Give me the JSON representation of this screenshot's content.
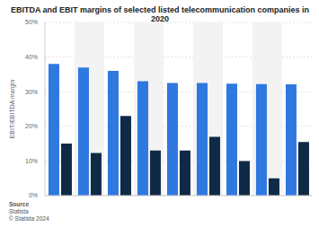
{
  "chart_data": {
    "type": "bar",
    "title": "EBITDA and EBIT margins of selected listed telecommunication companies in 2020",
    "y_label": "EBIT/EBITDA margin",
    "annotations": [
      "Source",
      "Statista",
      "© Statista 2024"
    ],
    "categories": [
      null,
      null,
      null,
      null,
      null,
      null,
      null,
      null,
      null
    ],
    "series": [
      {
        "color": "#2e78e0",
        "values": [
          38,
          37,
          36,
          33,
          32.5,
          32.5,
          32.3,
          32.2,
          32.1
        ]
      },
      {
        "color": "#0f2a47",
        "values": [
          15,
          12.3,
          23,
          13,
          13,
          17,
          10,
          5,
          15.5
        ]
      }
    ],
    "ylim": [
      0,
      50
    ],
    "yticks": [
      {
        "value": 0,
        "label": "0%"
      },
      {
        "value": 10,
        "label": "10%"
      },
      {
        "value": 20,
        "label": "20%"
      },
      {
        "value": 30,
        "label": "30%"
      },
      {
        "value": 40,
        "label": "40%"
      },
      {
        "value": 50,
        "label": "50%"
      }
    ],
    "grid": true,
    "tick_labels": "y"
  }
}
